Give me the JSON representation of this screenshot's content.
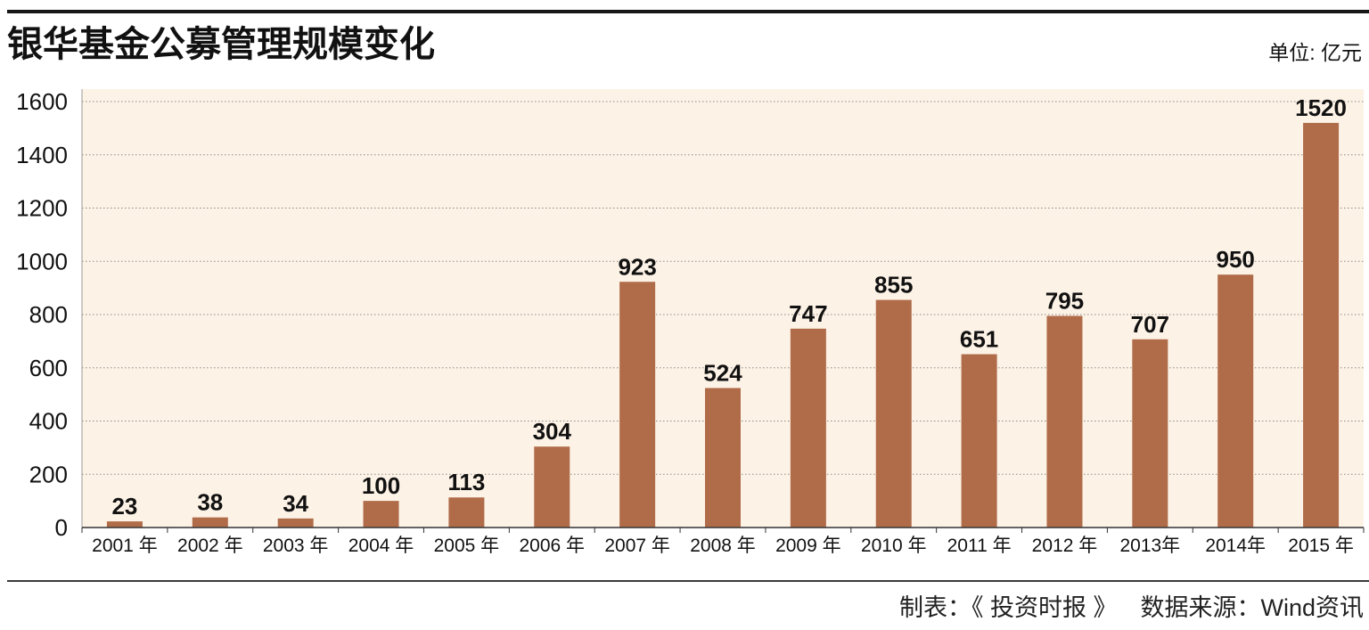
{
  "colors": {
    "bar": "#b06c49",
    "plot_background": "#fdf2e6",
    "gridline": "#8a8a8a",
    "axis": "#333333"
  },
  "footer": {
    "maker": "制表：《 投资时报 》",
    "source": "数据来源：Wind资讯"
  },
  "chart_data": {
    "type": "bar",
    "title": "银华基金公募管理规模变化",
    "unit_label": "单位: 亿元",
    "categories": [
      "2001 年",
      "2002 年",
      "2003 年",
      "2004 年",
      "2005 年",
      "2006 年",
      "2007 年",
      "2008 年",
      "2009 年",
      "2010 年",
      "2011 年",
      "2012 年",
      "2013年",
      "2014年",
      "2015 年"
    ],
    "values": [
      23,
      38,
      34,
      100,
      113,
      304,
      923,
      524,
      747,
      855,
      651,
      795,
      707,
      950,
      1520
    ],
    "ylim": [
      0,
      1600
    ],
    "yticks": [
      0,
      200,
      400,
      600,
      800,
      1000,
      1200,
      1400,
      1600
    ],
    "grid": true
  }
}
